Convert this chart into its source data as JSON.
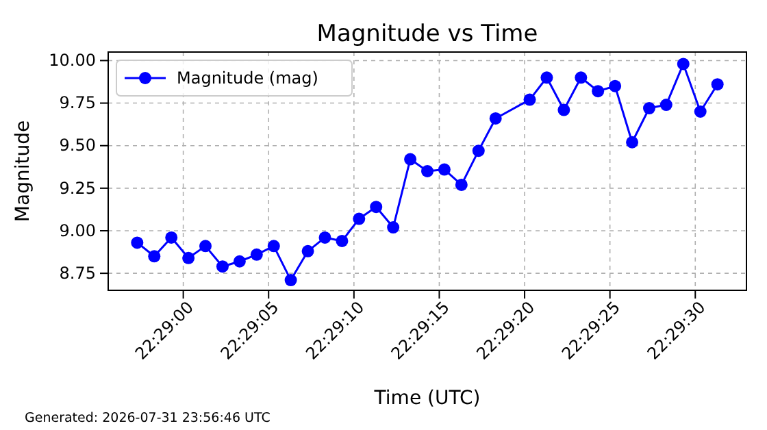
{
  "chart_data": {
    "type": "line",
    "title": "Magnitude vs Time",
    "xlabel": "Time (UTC)",
    "ylabel": "Magnitude",
    "x": [
      22.482583,
      22.482861,
      22.483139,
      22.483417,
      22.483694,
      22.483972,
      22.48425,
      22.484528,
      22.484806,
      22.485083,
      22.485361,
      22.485639,
      22.485917,
      22.486194,
      22.486472,
      22.48675,
      22.487028,
      22.487306,
      22.487583,
      22.487861,
      22.488139,
      22.488417,
      22.488972,
      22.48925,
      22.489528,
      22.489806,
      22.490083,
      22.490361,
      22.490639,
      22.490917,
      22.491194,
      22.491472,
      22.49175,
      22.492028
    ],
    "series": [
      {
        "name": "Magnitude (mag)",
        "color": "#0000ff",
        "values": [
          8.93,
          8.85,
          8.96,
          8.84,
          8.91,
          8.79,
          8.82,
          8.86,
          8.91,
          8.71,
          8.88,
          8.96,
          8.94,
          9.07,
          9.14,
          9.02,
          9.42,
          9.35,
          9.36,
          9.27,
          9.47,
          9.66,
          9.77,
          9.9,
          9.71,
          9.9,
          9.82,
          9.85,
          9.52,
          9.72,
          9.74,
          9.98,
          9.7,
          9.86
        ]
      }
    ],
    "xlim": [
      22.482111,
      22.4925
    ],
    "xticks": [
      {
        "value": 22.483333,
        "label": "22:29:00"
      },
      {
        "value": 22.484722,
        "label": "22:29:05"
      },
      {
        "value": 22.486111,
        "label": "22:29:10"
      },
      {
        "value": 22.4875,
        "label": "22:29:15"
      },
      {
        "value": 22.488889,
        "label": "22:29:20"
      },
      {
        "value": 22.490278,
        "label": "22:29:25"
      },
      {
        "value": 22.491667,
        "label": "22:29:30"
      }
    ],
    "ylim": [
      8.65,
      10.05
    ],
    "yticks": [
      {
        "value": 8.75,
        "label": "8.75"
      },
      {
        "value": 9,
        "label": "9.00"
      },
      {
        "value": 9.25,
        "label": "9.25"
      },
      {
        "value": 9.5,
        "label": "9.50"
      },
      {
        "value": 9.75,
        "label": "9.75"
      },
      {
        "value": 10,
        "label": "10.00"
      }
    ],
    "grid": true,
    "legend": "top left",
    "marker": "circle",
    "line_style": "solid",
    "annotations": [
      "Generated: 2026-07-31 23:56:46 UTC"
    ]
  }
}
